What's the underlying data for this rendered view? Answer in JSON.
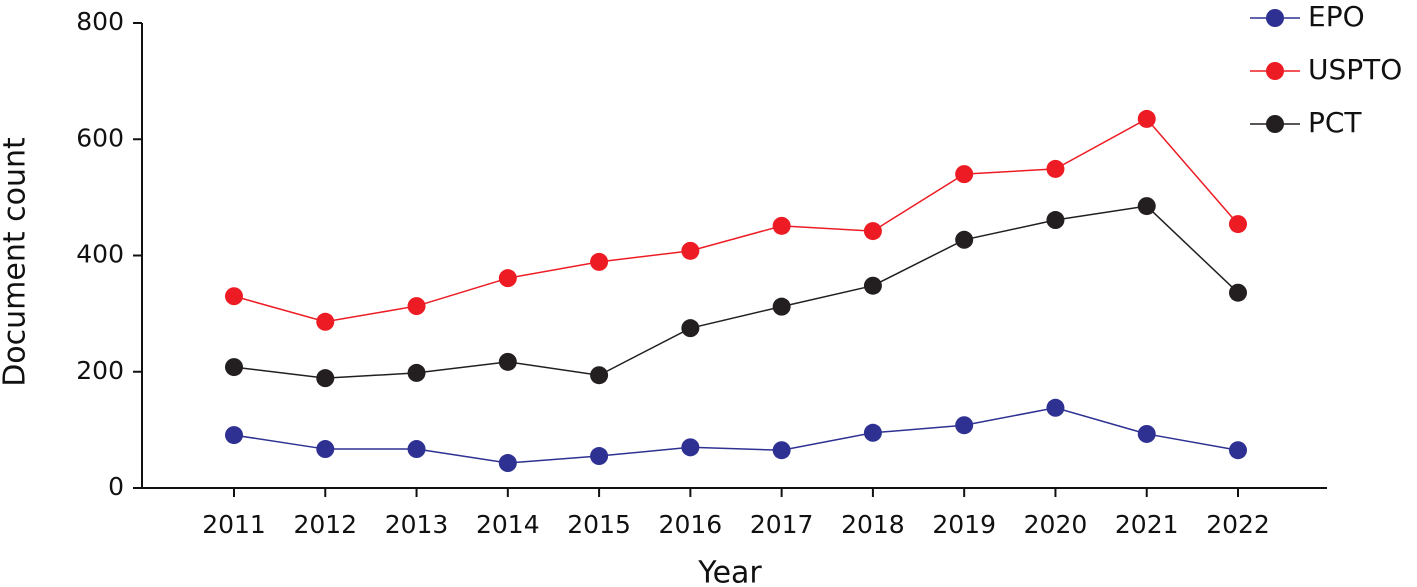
{
  "chart_data": {
    "type": "line",
    "x_label": "Year",
    "y_label": "Document count",
    "categories": [
      "2011",
      "2012",
      "2013",
      "2014",
      "2015",
      "2016",
      "2017",
      "2018",
      "2019",
      "2020",
      "2021",
      "2022"
    ],
    "series": [
      {
        "name": "EPO",
        "color": "#2e3192",
        "values": [
          91,
          67,
          67,
          43,
          55,
          70,
          65,
          95,
          108,
          138,
          93,
          65
        ]
      },
      {
        "name": "USPTO",
        "color": "#ed1c24",
        "values": [
          330,
          286,
          313,
          361,
          389,
          408,
          451,
          442,
          540,
          549,
          635,
          454
        ]
      },
      {
        "name": "PCT",
        "color": "#231f20",
        "values": [
          208,
          189,
          198,
          217,
          194,
          275,
          312,
          348,
          427,
          461,
          485,
          336
        ]
      }
    ],
    "ylim": [
      0,
      800
    ],
    "yticks": [
      0,
      200,
      400,
      600,
      800
    ],
    "grid": false,
    "legend": "upper right"
  }
}
